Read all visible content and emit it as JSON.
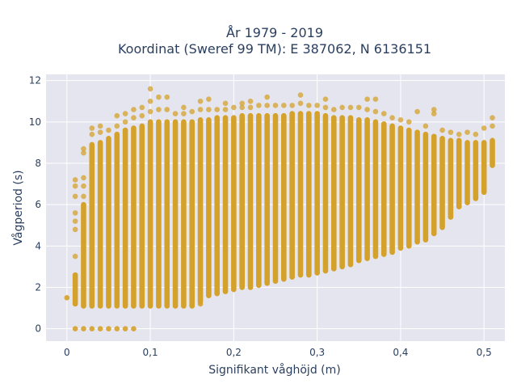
{
  "chart_data": {
    "type": "scatter",
    "title_line1": "År 1979 - 2019",
    "title_line2": "Koordinat (Sweref 99 TM): E 387062, N 6136151",
    "xlabel": "Signifikant våghöjd (m)",
    "ylabel": "Vågperiod (s)",
    "xlim": [
      -0.025,
      0.525
    ],
    "ylim": [
      -0.6,
      12.3
    ],
    "x_ticks": [
      0,
      0.1,
      0.2,
      0.3,
      0.4,
      0.5
    ],
    "x_tick_labels": [
      "0",
      "0,1",
      "0,2",
      "0,3",
      "0,4",
      "0,5"
    ],
    "y_ticks": [
      0,
      2,
      4,
      6,
      8,
      10,
      12
    ],
    "y_tick_labels": [
      "0",
      "2",
      "4",
      "6",
      "8",
      "10",
      "12"
    ],
    "grid": true,
    "colors": {
      "marker": "#d4a12a",
      "plot_bg": "#e5e5ef",
      "grid": "#ffffff"
    },
    "columns": [
      {
        "x": 0.01,
        "ymin": 1.2,
        "ymax": 2.6,
        "outliers": [
          3.5,
          4.8,
          5.2,
          5.6,
          6.4,
          6.9,
          7.2
        ]
      },
      {
        "x": 0.02,
        "ymin": 1.1,
        "ymax": 6.0,
        "outliers": [
          6.4,
          6.9,
          7.3,
          8.5,
          8.7
        ]
      },
      {
        "x": 0.03,
        "ymin": 1.1,
        "ymax": 8.9,
        "outliers": [
          9.4,
          9.7
        ]
      },
      {
        "x": 0.04,
        "ymin": 1.1,
        "ymax": 9.0,
        "outliers": [
          9.5,
          9.8
        ]
      },
      {
        "x": 0.05,
        "ymin": 1.1,
        "ymax": 9.2,
        "outliers": [
          9.6
        ]
      },
      {
        "x": 0.06,
        "ymin": 1.1,
        "ymax": 9.4,
        "outliers": [
          9.8,
          10.3
        ]
      },
      {
        "x": 0.07,
        "ymin": 1.1,
        "ymax": 9.6,
        "outliers": [
          10.0,
          10.4
        ]
      },
      {
        "x": 0.08,
        "ymin": 1.1,
        "ymax": 9.7,
        "outliers": [
          10.2,
          10.6
        ]
      },
      {
        "x": 0.09,
        "ymin": 1.1,
        "ymax": 9.8,
        "outliers": [
          10.3,
          10.7
        ]
      },
      {
        "x": 0.1,
        "ymin": 1.1,
        "ymax": 10.0,
        "outliers": [
          10.5,
          11.0,
          11.6
        ]
      },
      {
        "x": 0.11,
        "ymin": 1.1,
        "ymax": 10.0,
        "outliers": [
          10.6,
          11.2
        ]
      },
      {
        "x": 0.12,
        "ymin": 1.1,
        "ymax": 10.0,
        "outliers": [
          10.6,
          11.2
        ]
      },
      {
        "x": 0.13,
        "ymin": 1.1,
        "ymax": 10.0,
        "outliers": [
          10.4
        ]
      },
      {
        "x": 0.14,
        "ymin": 1.1,
        "ymax": 10.0,
        "outliers": [
          10.4,
          10.7
        ]
      },
      {
        "x": 0.15,
        "ymin": 1.1,
        "ymax": 10.0,
        "outliers": [
          10.5
        ]
      },
      {
        "x": 0.16,
        "ymin": 1.3,
        "ymax": 10.1,
        "outliers": [
          10.6,
          11.0
        ]
      },
      {
        "x": 0.17,
        "ymin": 1.6,
        "ymax": 10.1,
        "outliers": [
          10.6,
          11.1
        ]
      },
      {
        "x": 0.18,
        "ymin": 1.7,
        "ymax": 10.2,
        "outliers": [
          10.6
        ]
      },
      {
        "x": 0.19,
        "ymin": 1.8,
        "ymax": 10.2,
        "outliers": [
          10.6,
          10.9
        ]
      },
      {
        "x": 0.2,
        "ymin": 1.9,
        "ymax": 10.2,
        "outliers": [
          10.7
        ]
      },
      {
        "x": 0.21,
        "ymin": 2.0,
        "ymax": 10.3,
        "outliers": [
          10.7,
          10.9
        ]
      },
      {
        "x": 0.22,
        "ymin": 2.0,
        "ymax": 10.3,
        "outliers": [
          10.7,
          11.0
        ]
      },
      {
        "x": 0.23,
        "ymin": 2.1,
        "ymax": 10.3,
        "outliers": [
          10.8
        ]
      },
      {
        "x": 0.24,
        "ymin": 2.2,
        "ymax": 10.3,
        "outliers": [
          10.8,
          11.2
        ]
      },
      {
        "x": 0.25,
        "ymin": 2.3,
        "ymax": 10.3,
        "outliers": [
          10.8
        ]
      },
      {
        "x": 0.26,
        "ymin": 2.4,
        "ymax": 10.3,
        "outliers": [
          10.8
        ]
      },
      {
        "x": 0.27,
        "ymin": 2.5,
        "ymax": 10.4,
        "outliers": [
          10.8
        ]
      },
      {
        "x": 0.28,
        "ymin": 2.6,
        "ymax": 10.4,
        "outliers": [
          10.9,
          11.3
        ]
      },
      {
        "x": 0.29,
        "ymin": 2.6,
        "ymax": 10.4,
        "outliers": [
          10.8
        ]
      },
      {
        "x": 0.3,
        "ymin": 2.7,
        "ymax": 10.4,
        "outliers": [
          10.8
        ]
      },
      {
        "x": 0.31,
        "ymin": 2.8,
        "ymax": 10.3,
        "outliers": [
          10.7,
          11.1
        ]
      },
      {
        "x": 0.32,
        "ymin": 2.9,
        "ymax": 10.2,
        "outliers": [
          10.6
        ]
      },
      {
        "x": 0.33,
        "ymin": 3.0,
        "ymax": 10.2,
        "outliers": [
          10.7
        ]
      },
      {
        "x": 0.34,
        "ymin": 3.1,
        "ymax": 10.2,
        "outliers": [
          10.7
        ]
      },
      {
        "x": 0.35,
        "ymin": 3.3,
        "ymax": 10.1,
        "outliers": [
          10.7
        ]
      },
      {
        "x": 0.36,
        "ymin": 3.4,
        "ymax": 10.1,
        "outliers": [
          10.6,
          11.1
        ]
      },
      {
        "x": 0.37,
        "ymin": 3.5,
        "ymax": 10.0,
        "outliers": [
          10.5,
          11.1
        ]
      },
      {
        "x": 0.38,
        "ymin": 3.6,
        "ymax": 9.9,
        "outliers": [
          10.4
        ]
      },
      {
        "x": 0.39,
        "ymin": 3.7,
        "ymax": 9.8,
        "outliers": [
          10.2
        ]
      },
      {
        "x": 0.4,
        "ymin": 3.9,
        "ymax": 9.7,
        "outliers": [
          10.1
        ]
      },
      {
        "x": 0.41,
        "ymin": 4.0,
        "ymax": 9.6,
        "outliers": [
          10.0
        ]
      },
      {
        "x": 0.42,
        "ymin": 4.2,
        "ymax": 9.5,
        "outliers": [
          10.5
        ]
      },
      {
        "x": 0.43,
        "ymin": 4.3,
        "ymax": 9.4,
        "outliers": [
          9.8
        ]
      },
      {
        "x": 0.44,
        "ymin": 4.6,
        "ymax": 9.3,
        "outliers": [
          10.4,
          10.6
        ]
      },
      {
        "x": 0.45,
        "ymin": 4.9,
        "ymax": 9.2,
        "outliers": [
          9.6
        ]
      },
      {
        "x": 0.46,
        "ymin": 5.4,
        "ymax": 9.1,
        "outliers": [
          9.5
        ]
      },
      {
        "x": 0.47,
        "ymin": 5.9,
        "ymax": 9.1,
        "outliers": [
          9.4
        ]
      },
      {
        "x": 0.48,
        "ymin": 6.1,
        "ymax": 9.0,
        "outliers": [
          9.5
        ]
      },
      {
        "x": 0.49,
        "ymin": 6.3,
        "ymax": 9.0,
        "outliers": [
          9.4
        ]
      },
      {
        "x": 0.5,
        "ymin": 6.6,
        "ymax": 9.0,
        "outliers": [
          9.7
        ]
      },
      {
        "x": 0.51,
        "ymin": 7.9,
        "ymax": 9.1,
        "outliers": [
          9.8,
          10.2
        ]
      }
    ],
    "extra_points": [
      {
        "x": 0.0,
        "y": 1.5
      },
      {
        "x": 0.01,
        "y": 0
      },
      {
        "x": 0.02,
        "y": 0
      },
      {
        "x": 0.03,
        "y": 0
      },
      {
        "x": 0.04,
        "y": 0
      },
      {
        "x": 0.05,
        "y": 0
      },
      {
        "x": 0.06,
        "y": 0
      },
      {
        "x": 0.07,
        "y": 0
      },
      {
        "x": 0.08,
        "y": 0
      },
      {
        "x": 0.16,
        "y": 1.2
      }
    ]
  }
}
